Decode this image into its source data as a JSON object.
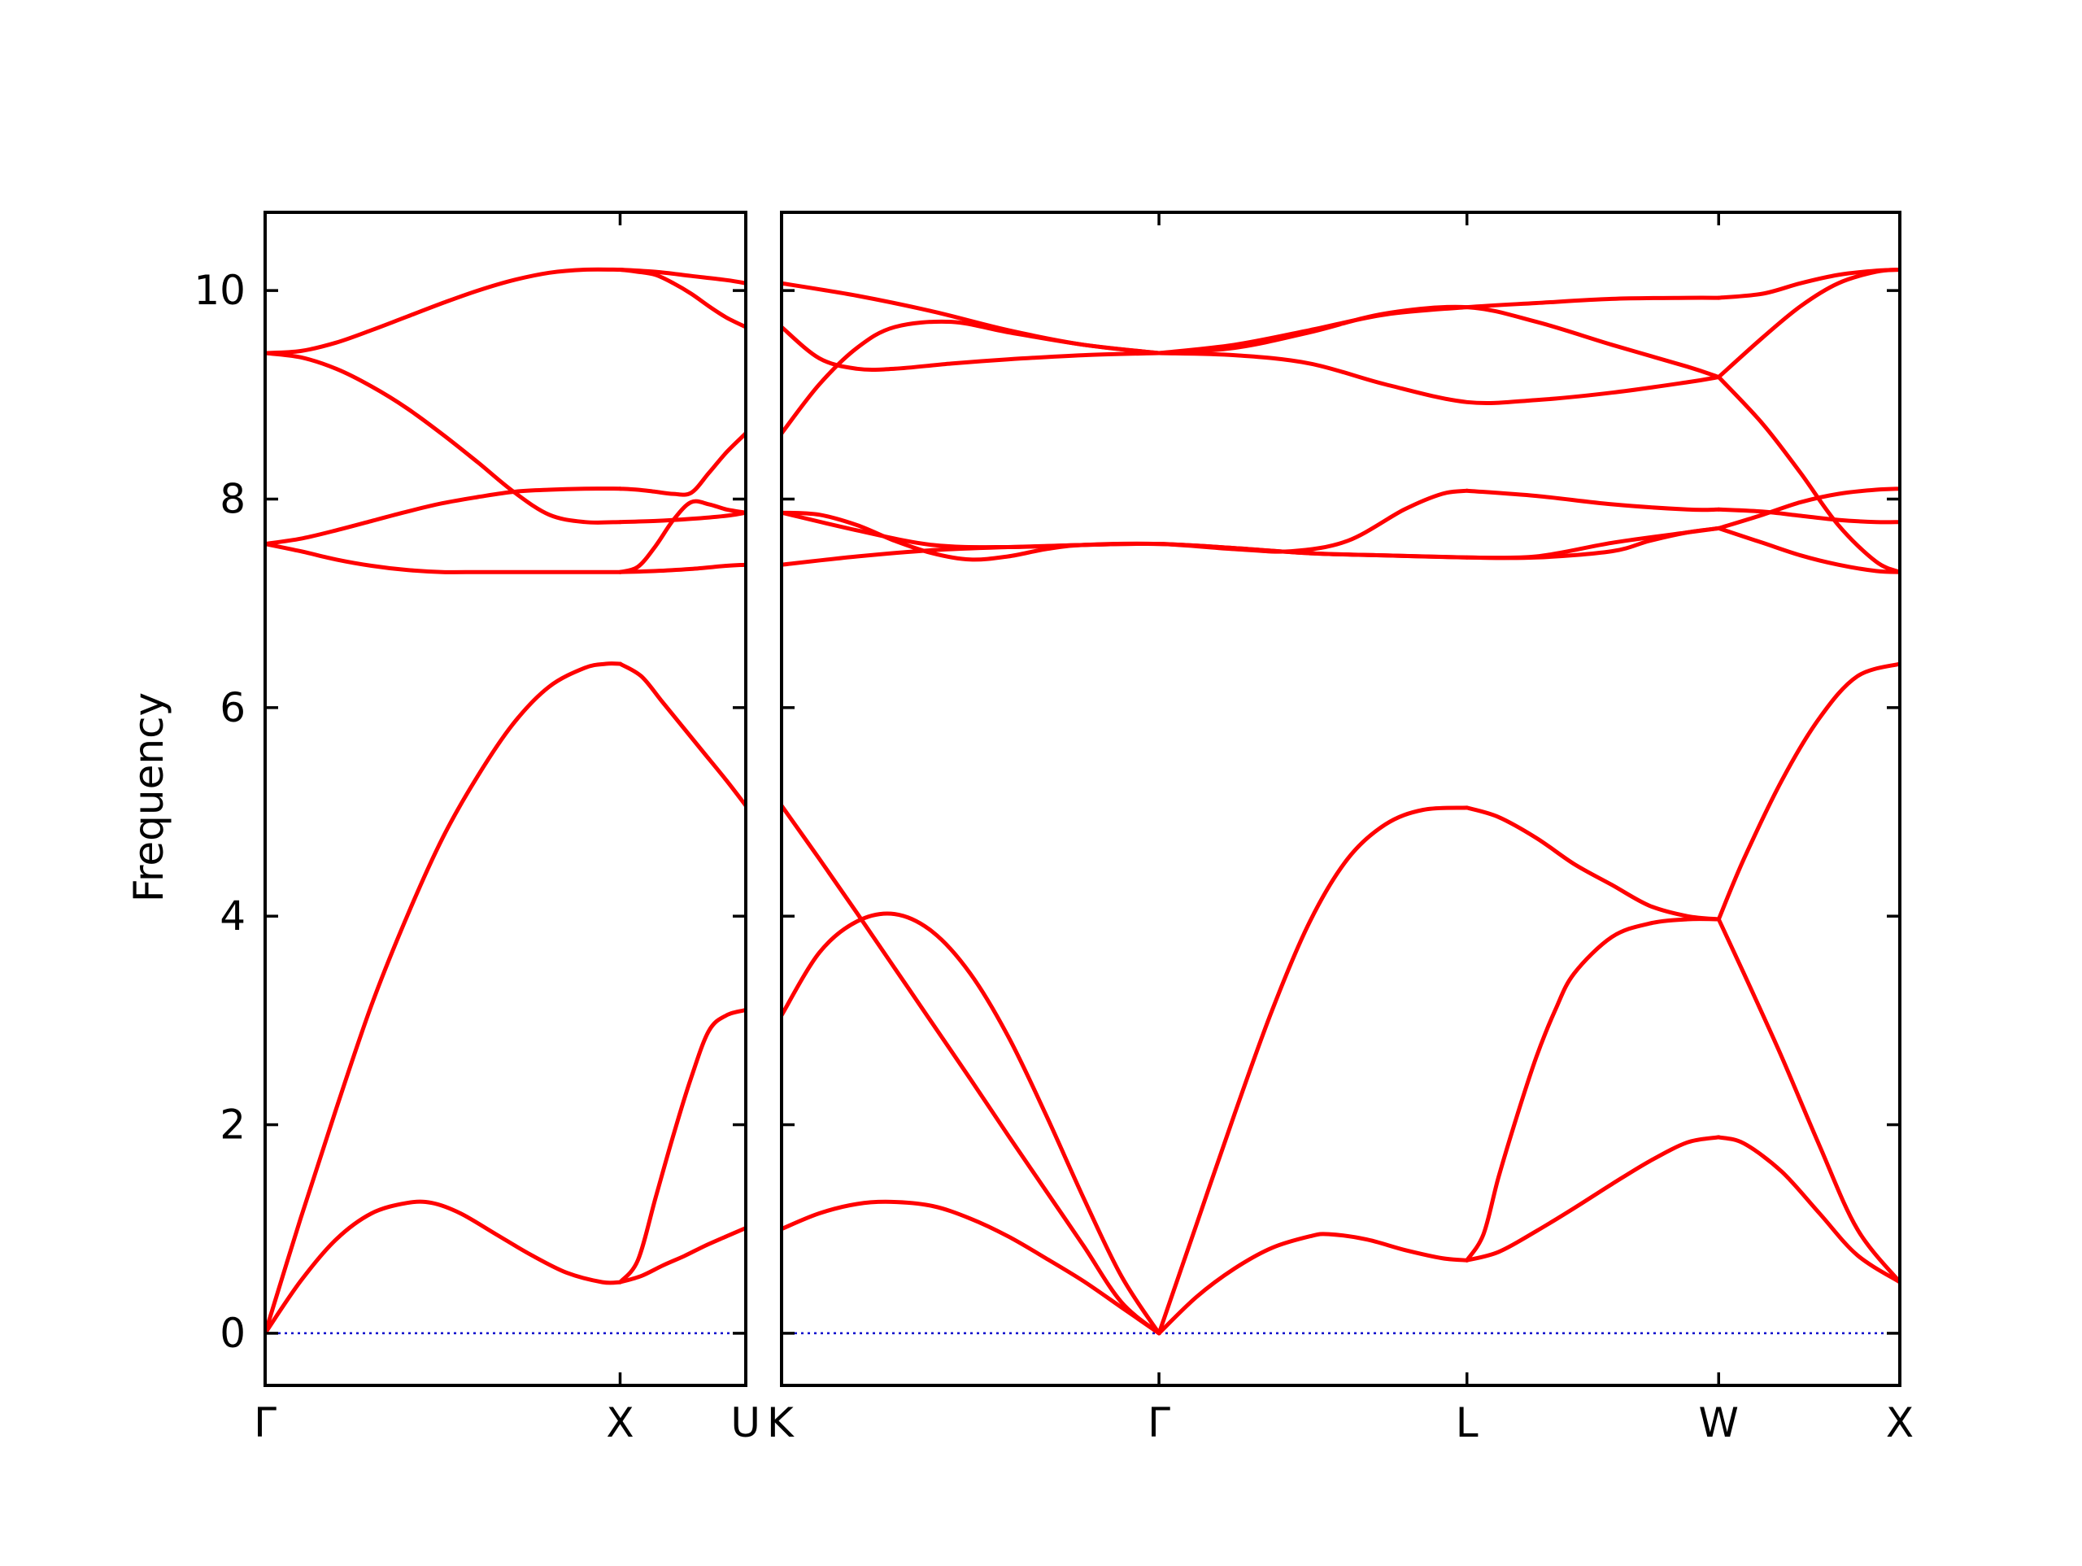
{
  "chart_data": {
    "type": "line",
    "ylabel": "Frequency",
    "ylim": [
      -0.5,
      10.75
    ],
    "yticks": [
      0,
      2,
      4,
      6,
      8,
      10
    ],
    "colors": {
      "bands": "#ff0000",
      "zero_line": "#0000cc",
      "frame": "#000000"
    },
    "grid": false,
    "panels": [
      {
        "x_range": [
          0,
          1.354
        ],
        "high_symmetry_points": [
          {
            "label": "Γ",
            "x": 0
          },
          {
            "label": "X",
            "x": 1.0
          },
          {
            "label": "U",
            "x": 1.354
          }
        ],
        "series": [
          {
            "x": [
              0,
              0.1,
              0.2,
              0.3,
              0.4,
              0.47,
              0.55,
              0.65,
              0.75,
              0.85,
              0.95,
              1.0
            ],
            "values": [
              0,
              0.5,
              0.9,
              1.15,
              1.25,
              1.25,
              1.15,
              0.95,
              0.75,
              0.58,
              0.49,
              0.49
            ]
          },
          {
            "x": [
              1.0,
              1.06,
              1.12,
              1.18,
              1.24,
              1.3,
              1.354
            ],
            "values": [
              0.49,
              0.55,
              0.65,
              0.74,
              0.84,
              0.93,
              1.01
            ]
          },
          {
            "x": [
              0,
              0.1,
              0.2,
              0.3,
              0.4,
              0.5,
              0.6,
              0.7,
              0.8,
              0.9,
              0.96,
              1.0
            ],
            "values": [
              0,
              1.1,
              2.15,
              3.15,
              4.0,
              4.75,
              5.35,
              5.85,
              6.2,
              6.38,
              6.42,
              6.42
            ]
          },
          {
            "x": [
              1.0,
              1.06,
              1.12,
              1.18,
              1.24,
              1.3,
              1.354
            ],
            "values": [
              6.42,
              6.3,
              6.05,
              5.8,
              5.55,
              5.3,
              5.06
            ]
          },
          {
            "x": [
              1.0,
              1.05,
              1.1,
              1.15,
              1.2,
              1.25,
              1.3,
              1.354
            ],
            "values": [
              0.49,
              0.7,
              1.3,
              1.9,
              2.45,
              2.9,
              3.05,
              3.1
            ]
          },
          {
            "x": [
              0,
              0.1,
              0.2,
              0.3,
              0.4,
              0.5,
              0.6,
              0.7,
              0.8,
              0.9,
              1.0
            ],
            "values": [
              7.57,
              7.5,
              7.42,
              7.36,
              7.32,
              7.3,
              7.3,
              7.3,
              7.3,
              7.3,
              7.3
            ]
          },
          {
            "x": [
              1.0,
              1.1,
              1.2,
              1.3,
              1.354
            ],
            "values": [
              7.3,
              7.31,
              7.33,
              7.36,
              7.37
            ]
          },
          {
            "x": [
              0,
              0.1,
              0.2,
              0.3,
              0.4,
              0.5,
              0.6,
              0.7,
              0.8,
              0.9,
              1.0
            ],
            "values": [
              7.57,
              7.62,
              7.7,
              7.79,
              7.88,
              7.96,
              8.02,
              8.07,
              8.09,
              8.1,
              8.1
            ]
          },
          {
            "x": [
              1.0,
              1.05,
              1.1,
              1.15,
              1.2,
              1.25,
              1.3,
              1.354
            ],
            "values": [
              8.1,
              8.09,
              8.07,
              8.05,
              8.06,
              8.25,
              8.45,
              8.63
            ]
          },
          {
            "x": [
              0,
              0.1,
              0.2,
              0.3,
              0.4,
              0.5,
              0.6,
              0.7,
              0.8,
              0.9,
              1.0
            ],
            "values": [
              9.4,
              9.36,
              9.25,
              9.08,
              8.87,
              8.62,
              8.35,
              8.07,
              7.85,
              7.78,
              7.78
            ]
          },
          {
            "x": [
              1.0,
              1.1,
              1.2,
              1.3,
              1.354
            ],
            "values": [
              7.78,
              7.79,
              7.81,
              7.84,
              7.87
            ]
          },
          {
            "x": [
              1.0,
              1.05,
              1.1,
              1.15,
              1.2,
              1.25,
              1.3,
              1.354
            ],
            "values": [
              7.3,
              7.35,
              7.55,
              7.8,
              7.97,
              7.95,
              7.9,
              7.87
            ]
          },
          {
            "x": [
              0,
              0.1,
              0.2,
              0.3,
              0.4,
              0.5,
              0.6,
              0.7,
              0.8,
              0.9,
              1.0
            ],
            "values": [
              9.4,
              9.42,
              9.5,
              9.62,
              9.75,
              9.88,
              10.0,
              10.1,
              10.17,
              10.2,
              10.2
            ]
          },
          {
            "x": [
              1.0,
              1.1,
              1.2,
              1.3,
              1.354
            ],
            "values": [
              10.2,
              10.18,
              10.14,
              10.1,
              10.07
            ]
          },
          {
            "x": [
              1.0,
              1.05,
              1.1,
              1.15,
              1.2,
              1.25,
              1.3,
              1.354
            ],
            "values": [
              10.2,
              10.18,
              10.15,
              10.07,
              9.97,
              9.85,
              9.74,
              9.65
            ]
          }
        ]
      },
      {
        "x_range": [
          0,
          2.963
        ],
        "high_symmetry_points": [
          {
            "label": "K",
            "x": 0
          },
          {
            "label": "Γ",
            "x": 1.0
          },
          {
            "label": "L",
            "x": 1.816
          },
          {
            "label": "W",
            "x": 2.483
          },
          {
            "label": "X",
            "x": 2.963
          }
        ],
        "series": [
          {
            "x": [
              0,
              0.1,
              0.2,
              0.29,
              0.4,
              0.5,
              0.6,
              0.7,
              0.8,
              0.9,
              1.0
            ],
            "values": [
              1.0,
              1.15,
              1.24,
              1.26,
              1.22,
              1.1,
              0.93,
              0.72,
              0.5,
              0.25,
              0
            ]
          },
          {
            "x": [
              0,
              0.1,
              0.2,
              0.3,
              0.4,
              0.5,
              0.6,
              0.7,
              0.8,
              0.9,
              1.0
            ],
            "values": [
              5.06,
              4.55,
              4.03,
              3.5,
              2.97,
              2.44,
              1.9,
              1.37,
              0.84,
              0.3,
              0
            ]
          },
          {
            "x": [
              0,
              0.1,
              0.2,
              0.3,
              0.4,
              0.5,
              0.6,
              0.7,
              0.8,
              0.9,
              1.0
            ],
            "values": [
              3.05,
              3.65,
              3.95,
              4.02,
              3.85,
              3.45,
              2.85,
              2.1,
              1.3,
              0.55,
              0
            ]
          },
          {
            "x": [
              1.0,
              1.1,
              1.2,
              1.3,
              1.4,
              1.45,
              1.55,
              1.65,
              1.75,
              1.816
            ],
            "values": [
              0,
              0.35,
              0.62,
              0.82,
              0.93,
              0.95,
              0.9,
              0.8,
              0.72,
              0.7
            ]
          },
          {
            "x": [
              1.0,
              1.1,
              1.2,
              1.3,
              1.4,
              1.5,
              1.6,
              1.7,
              1.816
            ],
            "values": [
              0,
              1.05,
              2.1,
              3.1,
              3.95,
              4.55,
              4.88,
              5.02,
              5.04
            ]
          },
          {
            "x": [
              1.816,
              1.9,
              2.0,
              2.1,
              2.2,
              2.3,
              2.4,
              2.483
            ],
            "values": [
              5.04,
              4.95,
              4.75,
              4.5,
              4.3,
              4.1,
              4.0,
              3.97
            ]
          },
          {
            "x": [
              1.816,
              1.9,
              2.0,
              2.1,
              2.2,
              2.3,
              2.4,
              2.483
            ],
            "values": [
              0.7,
              0.78,
              0.98,
              1.2,
              1.43,
              1.65,
              1.83,
              1.88
            ]
          },
          {
            "x": [
              1.816,
              1.86,
              1.9,
              1.95,
              2.0,
              2.05,
              2.1,
              2.2,
              2.3,
              2.4,
              2.483
            ],
            "values": [
              0.7,
              0.95,
              1.5,
              2.1,
              2.65,
              3.1,
              3.45,
              3.8,
              3.93,
              3.97,
              3.97
            ]
          },
          {
            "x": [
              2.483,
              2.55,
              2.65,
              2.75,
              2.85,
              2.963
            ],
            "values": [
              1.88,
              1.82,
              1.55,
              1.15,
              0.75,
              0.49
            ]
          },
          {
            "x": [
              2.483,
              2.55,
              2.65,
              2.75,
              2.85,
              2.963
            ],
            "values": [
              3.97,
              3.45,
              2.65,
              1.8,
              1.0,
              0.49
            ]
          },
          {
            "x": [
              2.483,
              2.55,
              2.65,
              2.75,
              2.85,
              2.963
            ],
            "values": [
              3.97,
              4.55,
              5.3,
              5.9,
              6.3,
              6.42
            ]
          },
          {
            "x": [
              0,
              0.2,
              0.4,
              0.6,
              0.8,
              1.0,
              1.2,
              1.4,
              1.6,
              1.816,
              2.0,
              2.2,
              2.3,
              2.4,
              2.483
            ],
            "values": [
              7.37,
              7.45,
              7.51,
              7.54,
              7.56,
              7.57,
              7.53,
              7.48,
              7.46,
              7.44,
              7.44,
              7.5,
              7.6,
              7.68,
              7.72
            ]
          },
          {
            "x": [
              0,
              0.1,
              0.2,
              0.3,
              0.4,
              0.5,
              0.6,
              0.7,
              0.8,
              1.0,
              1.2,
              1.35,
              1.5,
              1.65,
              1.75,
              1.816
            ],
            "values": [
              7.87,
              7.85,
              7.75,
              7.6,
              7.48,
              7.42,
              7.45,
              7.52,
              7.56,
              7.57,
              7.52,
              7.5,
              7.6,
              7.9,
              8.05,
              8.08
            ]
          },
          {
            "x": [
              0,
              0.2,
              0.4,
              0.6,
              0.8,
              1.0,
              1.2,
              1.4,
              1.6,
              1.816
            ],
            "values": [
              7.87,
              7.7,
              7.56,
              7.54,
              7.56,
              7.57,
              7.53,
              7.48,
              7.46,
              7.44
            ]
          },
          {
            "x": [
              1.816,
              2.0,
              2.2,
              2.4,
              2.483
            ],
            "values": [
              7.44,
              7.45,
              7.58,
              7.68,
              7.72
            ]
          },
          {
            "x": [
              1.816,
              2.0,
              2.2,
              2.4,
              2.483
            ],
            "values": [
              8.08,
              8.03,
              7.95,
              7.9,
              7.9
            ]
          },
          {
            "x": [
              2.483,
              2.6,
              2.7,
              2.8,
              2.9,
              2.963
            ],
            "values": [
              7.9,
              7.88,
              7.84,
              7.8,
              7.78,
              7.78
            ]
          },
          {
            "x": [
              2.483,
              2.6,
              2.7,
              2.8,
              2.9,
              2.963
            ],
            "values": [
              7.72,
              7.85,
              7.97,
              8.05,
              8.09,
              8.1
            ]
          },
          {
            "x": [
              2.483,
              2.6,
              2.7,
              2.8,
              2.9,
              2.963
            ],
            "values": [
              7.72,
              7.58,
              7.46,
              7.37,
              7.31,
              7.3
            ]
          },
          {
            "x": [
              0,
              0.1,
              0.2,
              0.3,
              0.45,
              0.6,
              0.8,
              1.0
            ],
            "values": [
              8.63,
              9.1,
              9.45,
              9.65,
              9.7,
              9.6,
              9.48,
              9.4
            ]
          },
          {
            "x": [
              0,
              0.1,
              0.2,
              0.3,
              0.45,
              0.6,
              0.8,
              1.0
            ],
            "values": [
              9.65,
              9.35,
              9.25,
              9.25,
              9.3,
              9.34,
              9.38,
              9.4
            ]
          },
          {
            "x": [
              0,
              0.2,
              0.4,
              0.6,
              0.8,
              1.0
            ],
            "values": [
              10.07,
              9.95,
              9.8,
              9.62,
              9.48,
              9.4
            ]
          },
          {
            "x": [
              1.0,
              1.2,
              1.4,
              1.6,
              1.816,
              2.0,
              2.2,
              2.4,
              2.483
            ],
            "values": [
              9.4,
              9.48,
              9.62,
              9.77,
              9.84,
              9.88,
              9.92,
              9.93,
              9.93
            ]
          },
          {
            "x": [
              1.0,
              1.2,
              1.4,
              1.6,
              1.816,
              2.0,
              2.2,
              2.4,
              2.483
            ],
            "values": [
              9.4,
              9.38,
              9.3,
              9.1,
              8.93,
              8.95,
              9.02,
              9.12,
              9.17
            ]
          },
          {
            "x": [
              1.0,
              1.2,
              1.4,
              1.6,
              1.816,
              2.0,
              2.2,
              2.4,
              2.483
            ],
            "values": [
              9.4,
              9.45,
              9.6,
              9.78,
              9.84,
              9.7,
              9.48,
              9.27,
              9.17
            ]
          },
          {
            "x": [
              2.483,
              2.6,
              2.7,
              2.8,
              2.9,
              2.963
            ],
            "values": [
              9.93,
              9.97,
              10.07,
              10.15,
              10.19,
              10.2
            ]
          },
          {
            "x": [
              2.483,
              2.6,
              2.7,
              2.8,
              2.9,
              2.963
            ],
            "values": [
              9.17,
              9.55,
              9.85,
              10.07,
              10.18,
              10.2
            ]
          },
          {
            "x": [
              2.483,
              2.6,
              2.7,
              2.8,
              2.9,
              2.963
            ],
            "values": [
              9.17,
              8.72,
              8.25,
              7.75,
              7.4,
              7.3
            ]
          }
        ]
      }
    ]
  }
}
